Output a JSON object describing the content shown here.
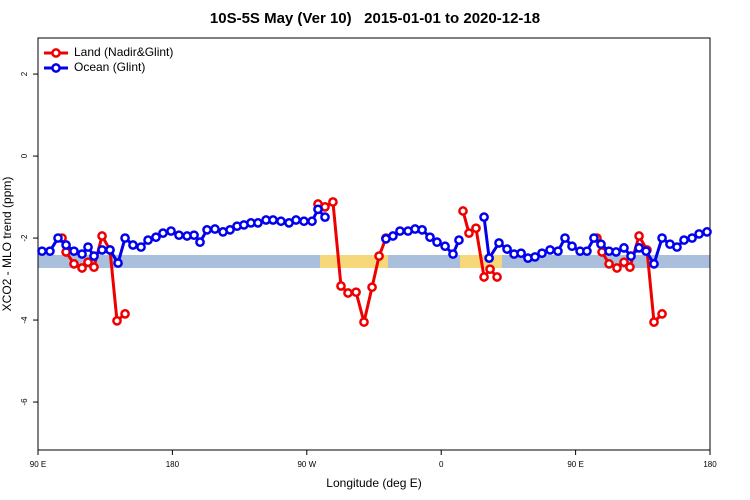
{
  "chart_data": {
    "type": "line",
    "title": "10S-5S May (Ver 10)   2015-01-01 to 2020-12-18",
    "x_label": "Longitude (deg E)",
    "y_label": "XCO2 - MLO trend (ppm)",
    "xlim": [
      90,
      540
    ],
    "ylim": [
      -7.17,
      2.88
    ],
    "xticks": [
      {
        "value": 90,
        "label": "90 E"
      },
      180,
      {
        "value": 270,
        "label": "90 W"
      },
      {
        "value": 360,
        "label": "0"
      },
      {
        "value": 450,
        "label": "90 E"
      },
      {
        "value": 540,
        "label": "180"
      }
    ],
    "yticks": [
      2,
      0,
      -2,
      -4,
      -6
    ],
    "legend": "top-left",
    "series": [
      {
        "name": "Land (Nadir&Glint)",
        "color": "#ee0000",
        "x": [
          106.1,
          108.8,
          114.1,
          119.5,
          123.5,
          127.5,
          132.9,
          138.2,
          142.9,
          148.3,
          null,
          277.5,
          282.2,
          287.5,
          292.9,
          297.6,
          303,
          308.3,
          313.7,
          318.4,
          323,
          null,
          374.6,
          378.6,
          383.3,
          388.7,
          392.7,
          397.4,
          null,
          464.3,
          467.7,
          472.4,
          477.7,
          482.4,
          486.4,
          492.5,
          497.8,
          502.5,
          507.9
        ],
        "values": [
          -2.0,
          -2.34,
          -2.63,
          -2.73,
          -2.59,
          -2.71,
          -1.95,
          -2.29,
          -4.02,
          -3.85,
          null,
          -1.17,
          -1.24,
          -1.12,
          -3.17,
          -3.34,
          -3.32,
          -4.05,
          -3.2,
          -2.44,
          -2.0,
          null,
          -1.34,
          -1.88,
          -1.76,
          -2.95,
          -2.76,
          -2.95,
          null,
          -2.0,
          -2.34,
          -2.63,
          -2.73,
          -2.59,
          -2.71,
          -1.95,
          -2.29,
          -4.05,
          -3.85
        ]
      },
      {
        "name": "Ocean (Glint)",
        "color": "#0000ee",
        "x": [
          92.7,
          98,
          103.4,
          108.8,
          114.1,
          119.5,
          123.5,
          127.5,
          132.9,
          138.2,
          143.6,
          148.3,
          153.6,
          159,
          163.7,
          169,
          173.7,
          179.1,
          184.4,
          189.8,
          194.5,
          198.5,
          203.2,
          208.5,
          213.9,
          218.6,
          223.3,
          227.9,
          232.6,
          237.3,
          242.7,
          247.4,
          252.7,
          258.1,
          262.8,
          268.1,
          273.5,
          277.5,
          282.2,
          null,
          323,
          327.7,
          332.4,
          337.8,
          342.5,
          347.2,
          352.5,
          357.2,
          362.6,
          367.9,
          371.9,
          null,
          388.7,
          392.1,
          398.7,
          404.1,
          408.8,
          413.5,
          418.1,
          422.8,
          427.5,
          432.9,
          438.2,
          442.9,
          447.6,
          453,
          457.6,
          462.3,
          467,
          472.4,
          477.1,
          482.4,
          487.1,
          492.5,
          497.2,
          502.5,
          507.9,
          513.2,
          517.9,
          522.6,
          528,
          532.7,
          538
        ],
        "values": [
          -2.32,
          -2.32,
          -2.0,
          -2.17,
          -2.32,
          -2.39,
          -2.22,
          -2.44,
          -2.29,
          -2.29,
          -2.61,
          -2.0,
          -2.17,
          -2.22,
          -2.05,
          -1.98,
          -1.88,
          -1.83,
          -1.93,
          -1.95,
          -1.93,
          -2.1,
          -1.8,
          -1.78,
          -1.85,
          -1.8,
          -1.71,
          -1.68,
          -1.63,
          -1.63,
          -1.56,
          -1.56,
          -1.59,
          -1.63,
          -1.56,
          -1.59,
          -1.59,
          -1.3,
          -1.49,
          null,
          -2.02,
          -1.95,
          -1.83,
          -1.83,
          -1.78,
          -1.8,
          -1.98,
          -2.1,
          -2.2,
          -2.39,
          -2.05,
          null,
          -1.49,
          -2.49,
          -2.12,
          -2.27,
          -2.39,
          -2.37,
          -2.49,
          -2.46,
          -2.37,
          -2.29,
          -2.32,
          -2.0,
          -2.2,
          -2.32,
          -2.32,
          -2.0,
          -2.15,
          -2.32,
          -2.34,
          -2.24,
          -2.44,
          -2.24,
          -2.32,
          -2.63,
          -2.0,
          -2.15,
          -2.22,
          -2.05,
          -2.0,
          -1.9,
          -1.85
        ]
      }
    ]
  }
}
